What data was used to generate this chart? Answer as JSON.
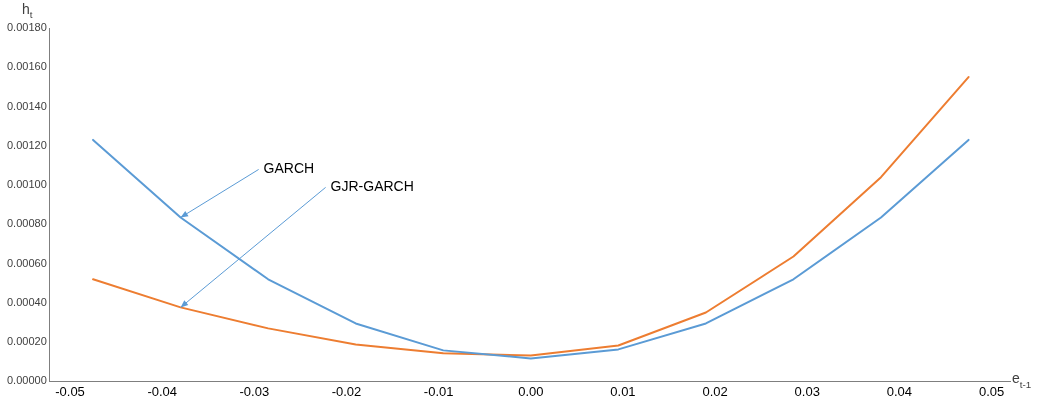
{
  "chart_data": {
    "type": "line",
    "xlabel": "e$_{t-1}$",
    "ylabel": "h$_{t}$",
    "x": [
      -0.0475,
      -0.038,
      -0.0285,
      -0.019,
      -0.0095,
      0,
      0.0095,
      0.019,
      0.0285,
      0.038,
      0.0475
    ],
    "series": [
      {
        "color": "#5b9bd5",
        "values": [
          0.00123,
          0.000835,
          0.00052,
          0.000295,
          0.000158,
          0.000117,
          0.000163,
          0.000295,
          0.00052,
          0.000835,
          0.00123
        ]
      },
      {
        "color": "#ed7d31",
        "values": [
          0.00052,
          0.000377,
          0.00027,
          0.000188,
          0.000143,
          0.000132,
          0.000183,
          0.000351,
          0.000636,
          0.00104,
          0.00155
        ]
      }
    ],
    "xlim": [
      -0.0522,
      0.052
    ],
    "xticks": [
      {
        "value": -0.05,
        "label": "-0.05"
      },
      {
        "value": -0.04,
        "label": "-0.04"
      },
      {
        "value": -0.03,
        "label": "-0.03"
      },
      {
        "value": -0.02,
        "label": "-0.02"
      },
      {
        "value": -0.01,
        "label": "-0.01"
      },
      {
        "value": 0,
        "label": "0.00"
      },
      {
        "value": 0.01,
        "label": "0.01"
      },
      {
        "value": 0.02,
        "label": "0.02"
      },
      {
        "value": 0.03,
        "label": "0.03"
      },
      {
        "value": 0.04,
        "label": "0.04"
      },
      {
        "value": 0.05,
        "label": "0.05"
      }
    ],
    "ylim": [
      0,
      0.0018
    ],
    "yticks": [
      {
        "value": 0,
        "label": "0.00000"
      },
      {
        "value": 0.0002,
        "label": "0.00020"
      },
      {
        "value": 0.0004,
        "label": "0.00040"
      },
      {
        "value": 0.0006,
        "label": "0.00060"
      },
      {
        "value": 0.0008,
        "label": "0.00080"
      },
      {
        "value": 0.001,
        "label": "0.00100"
      },
      {
        "value": 0.0012,
        "label": "0.00120"
      },
      {
        "value": 0.0014,
        "label": "0.00140"
      },
      {
        "value": 0.0016,
        "label": "0.00160"
      },
      {
        "value": 0.0018,
        "label": "0.00180"
      }
    ],
    "annotations": [
      {
        "text": "GARCH",
        "x": -0.038,
        "y": 0.000835
      },
      {
        "text": "GJR-GARCH",
        "x": -0.038,
        "y": 0.000377
      }
    ],
    "grid": false,
    "legend": false,
    "marker": "none",
    "line_style": "solid"
  }
}
